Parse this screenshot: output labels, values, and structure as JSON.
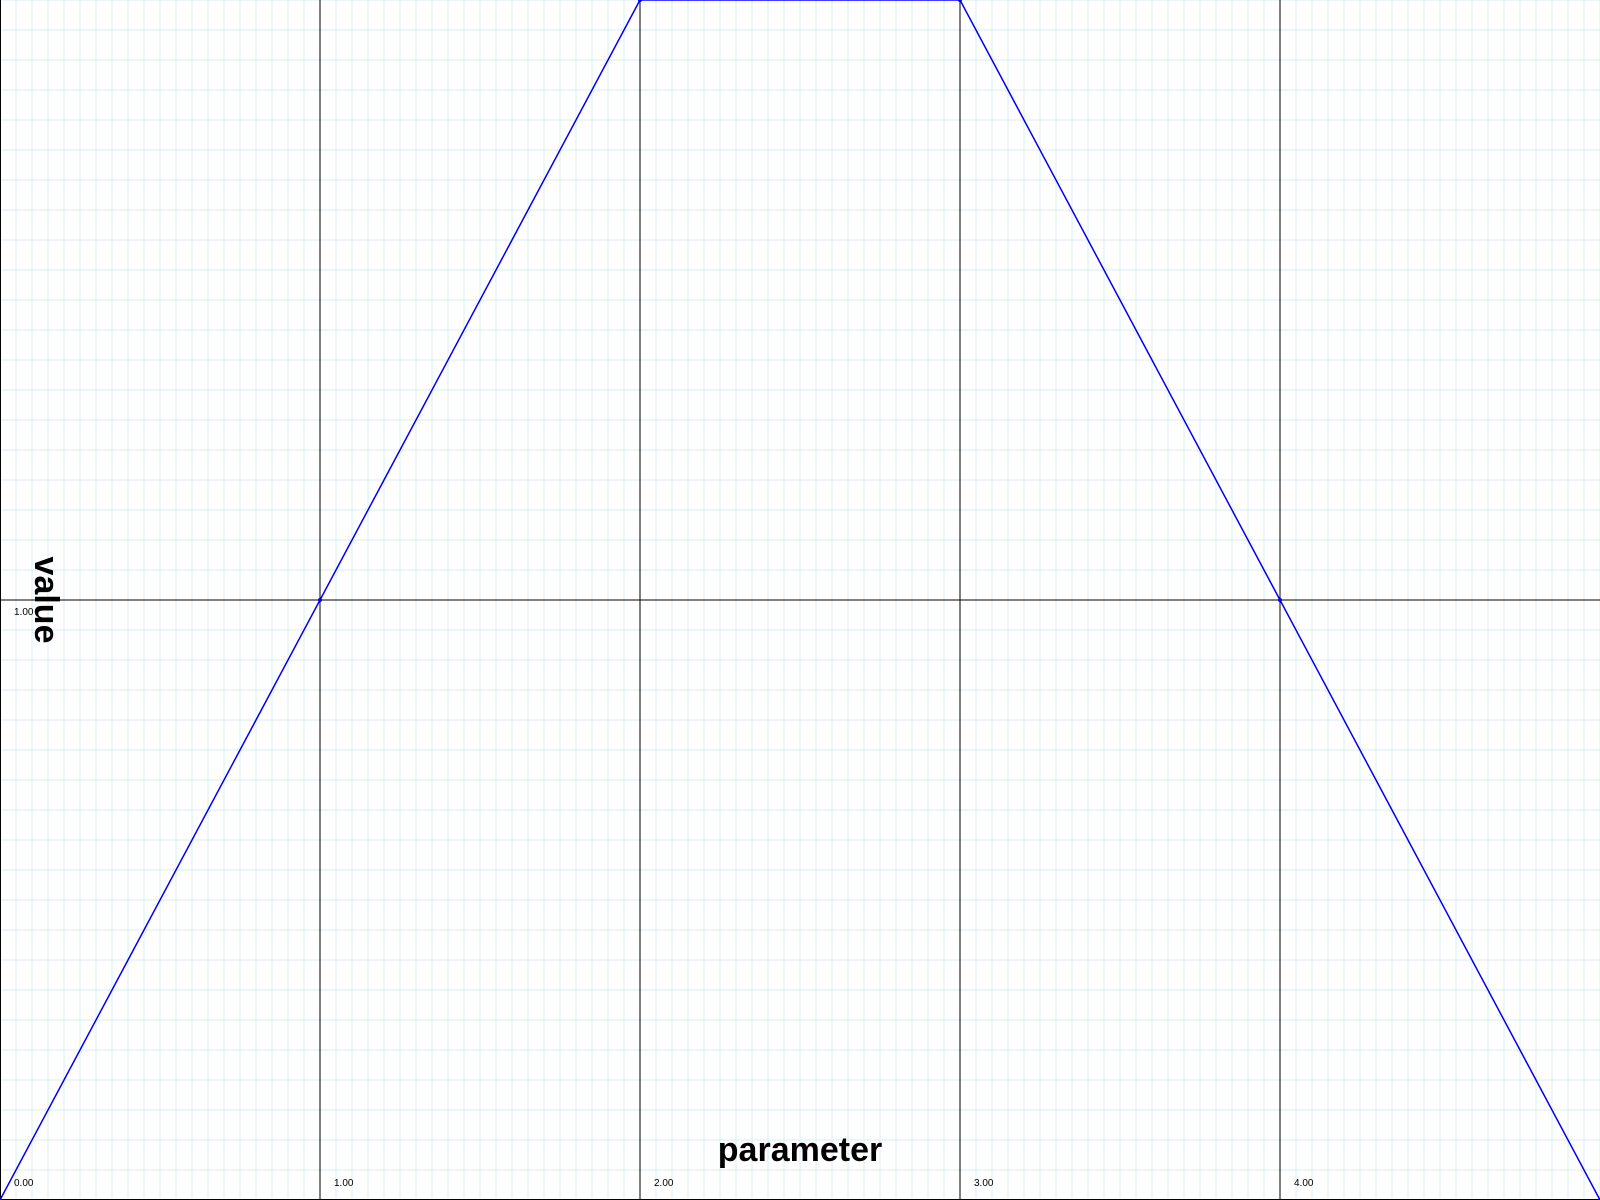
{
  "chart_data": {
    "type": "line",
    "title": "",
    "xlabel": "parameter",
    "ylabel": "value",
    "xlim": [
      0,
      5
    ],
    "ylim": [
      0,
      2
    ],
    "x_major_ticks": [
      0,
      1,
      2,
      3,
      4
    ],
    "x_tick_labels": [
      "0.00",
      "1.00",
      "2.00",
      "3.00",
      "4.00"
    ],
    "y_major_ticks": [
      1
    ],
    "y_tick_labels": [
      "1.00"
    ],
    "minor_divisions_per_unit": 20,
    "grid": true,
    "series": [
      {
        "x": [
          0,
          1,
          2,
          3,
          4,
          5
        ],
        "y": [
          0,
          1,
          2,
          2,
          1,
          0
        ]
      }
    ],
    "colors": {
      "background": "#ffffff",
      "minor_grid": "#d6eef2",
      "major_grid": "#000000",
      "line": "#0000ff"
    }
  }
}
